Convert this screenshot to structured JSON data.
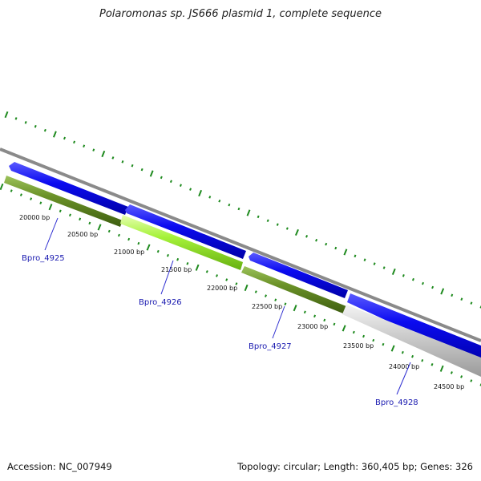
{
  "title": "Polaromonas sp. JS666 plasmid 1, complete sequence",
  "footer": {
    "accession": "Accession: NC_007949",
    "summary": "Topology: circular; Length: 360,405 bp; Genes: 326"
  },
  "colors": {
    "backbone": "#8a8a8a",
    "forward_gene": "#0b0bf0",
    "reverse_gene": "#5e8a1e",
    "reverse_gene_highlight": "#a6f23a",
    "reverse_gene_grey": "#c8c8c8",
    "tick": "#1e8a1e",
    "gene_label": "#1a1ab0"
  },
  "scale_labels": [
    "20000 bp",
    "20500 bp",
    "21000 bp",
    "21500 bp",
    "22000 bp",
    "22500 bp",
    "23000 bp",
    "23500 bp",
    "24000 bp",
    "24500 bp"
  ],
  "gene_labels": [
    "Bpro_4925",
    "Bpro_4926",
    "Bpro_4927",
    "Bpro_4928"
  ]
}
